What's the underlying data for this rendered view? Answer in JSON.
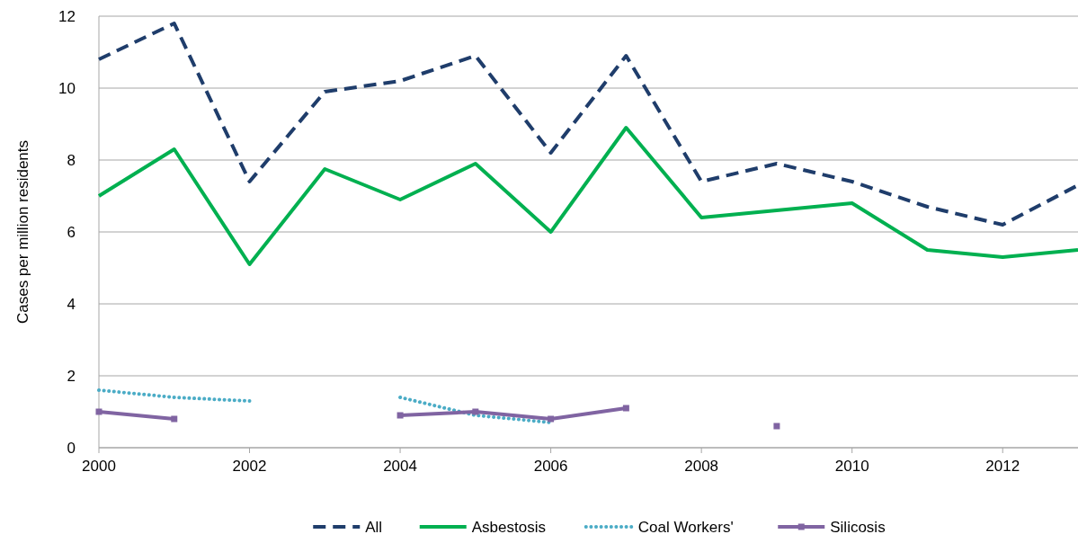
{
  "chart_data": {
    "type": "line",
    "ylabel": "Cases per million residents",
    "x": [
      2000,
      2001,
      2002,
      2003,
      2004,
      2005,
      2006,
      2007,
      2008,
      2009,
      2010,
      2011,
      2012,
      2013
    ],
    "xlim": [
      2000,
      2013
    ],
    "xticks": [
      2000,
      2002,
      2004,
      2006,
      2008,
      2010,
      2012
    ],
    "ylim": [
      0,
      12
    ],
    "yticks": [
      0,
      2,
      4,
      6,
      8,
      10,
      12
    ],
    "grid": "y",
    "legend": "bottom",
    "series": [
      {
        "name": "All",
        "color": "#1f3d6b",
        "line_style": "dashed",
        "marker": "none",
        "values": [
          10.8,
          11.8,
          7.4,
          9.9,
          10.2,
          10.9,
          8.2,
          10.9,
          7.4,
          7.9,
          7.4,
          6.7,
          6.2,
          7.3
        ]
      },
      {
        "name": "Asbestosis",
        "color": "#00b050",
        "line_style": "solid",
        "marker": "none",
        "values": [
          7.0,
          8.3,
          5.1,
          7.75,
          6.9,
          7.9,
          6.0,
          8.9,
          6.4,
          6.6,
          6.8,
          5.5,
          5.3,
          5.5
        ]
      },
      {
        "name": "Coal Workers'",
        "color": "#4bacc6",
        "line_style": "dotted",
        "marker": "none",
        "values": [
          1.6,
          1.4,
          1.3,
          null,
          1.4,
          0.9,
          0.7,
          null,
          null,
          null,
          null,
          null,
          null,
          null
        ]
      },
      {
        "name": "Silicosis",
        "color": "#8064a2",
        "line_style": "solid",
        "marker": "square",
        "values": [
          1.0,
          0.8,
          null,
          null,
          0.9,
          1.0,
          0.8,
          1.1,
          null,
          0.6,
          null,
          null,
          null,
          null
        ]
      }
    ]
  }
}
